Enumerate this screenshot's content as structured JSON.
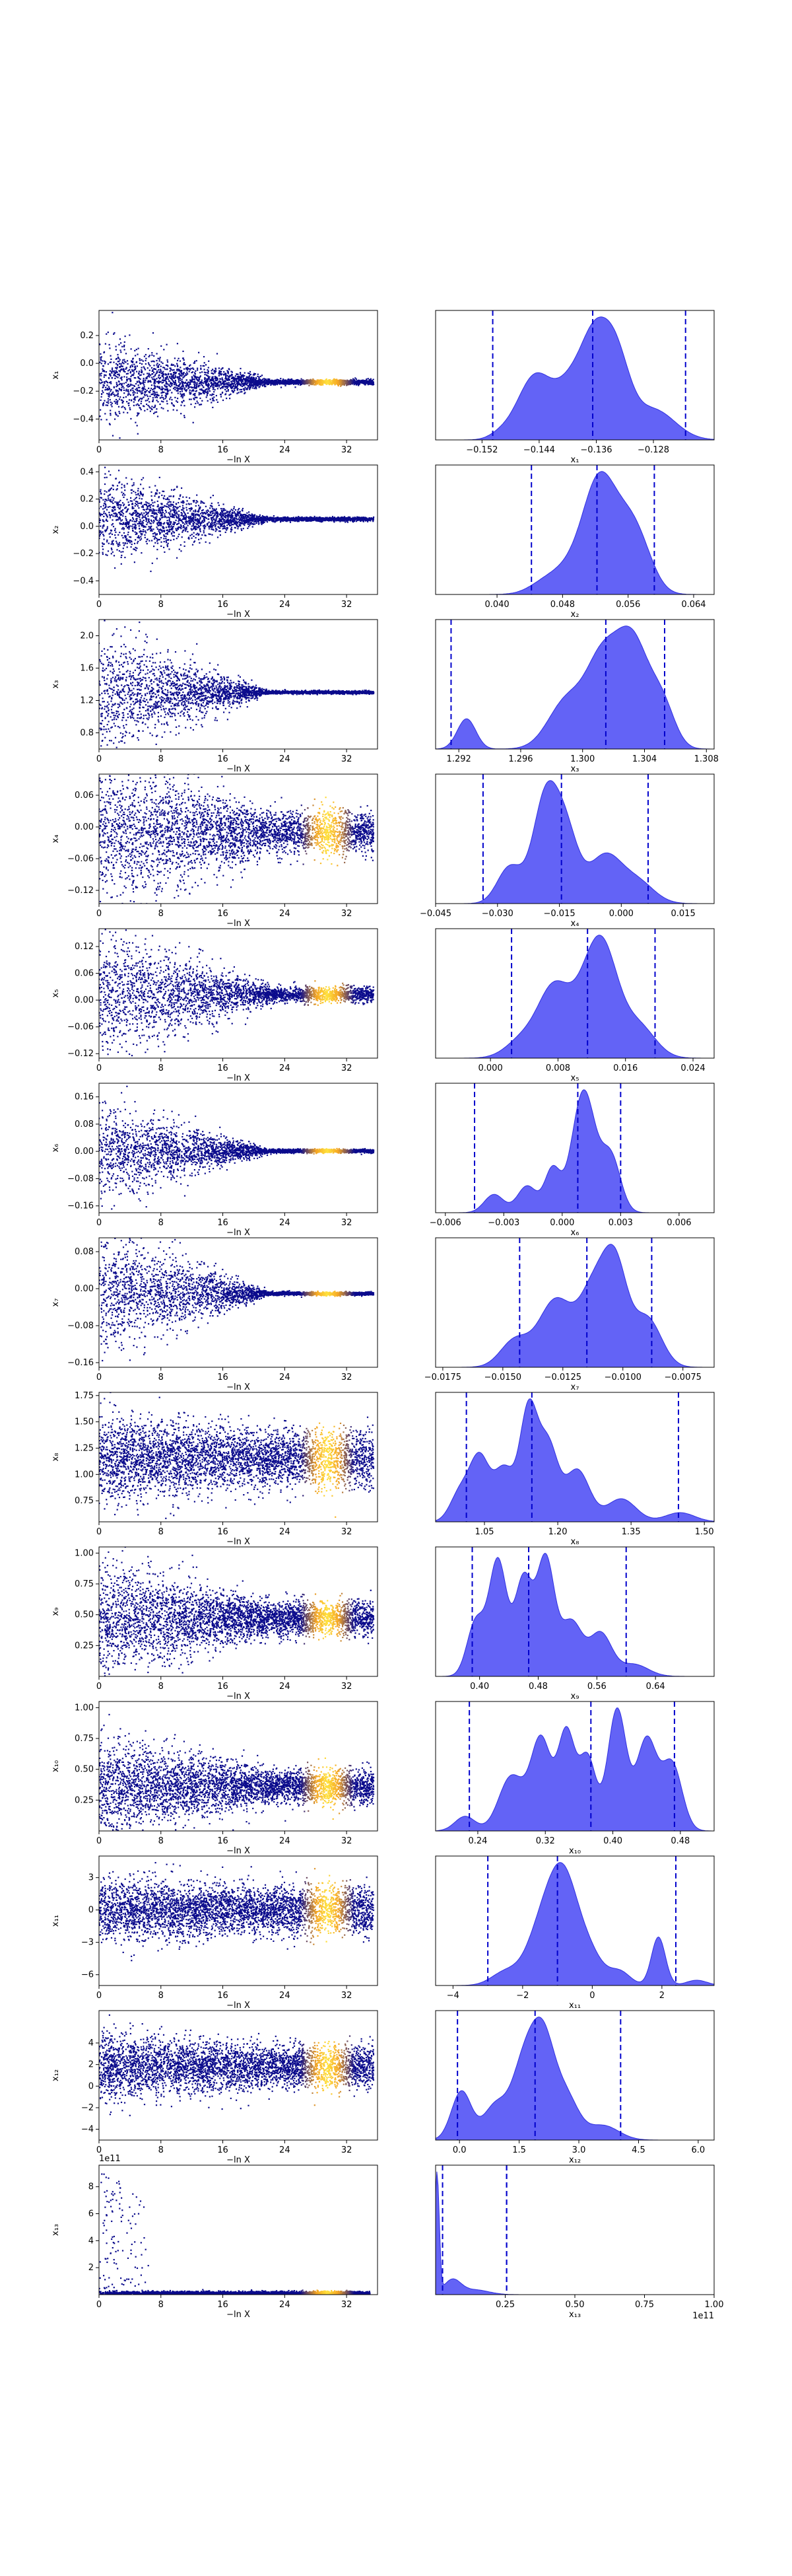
{
  "chart_data": {
    "type": "scatter",
    "x_label": "−ln X",
    "x_ticks": [
      "0",
      "8",
      "16",
      "24",
      "32"
    ],
    "x_range": [
      0,
      36
    ],
    "colors": {
      "scatter_base": "#0b0b8c",
      "scatter_hot": "#f5a623",
      "scatter_hottest": "#ffe23d",
      "kde_fill": "#5b5bf5",
      "kde_edge": "#3030e0",
      "quantile_line": "#0000cc"
    },
    "rows": [
      {
        "param": "x1",
        "label": "x₁",
        "trace": {
          "start_spread": 0.35,
          "end_spread": 0.02,
          "center": -0.135,
          "yticks": [
            "0.2",
            "0.0",
            "−0.2",
            "−0.4"
          ],
          "yvals": [
            0.2,
            0.0,
            -0.2,
            -0.4
          ],
          "ylim": [
            -0.55,
            0.38
          ],
          "hot": true,
          "n": 3000
        },
        "kde": {
          "xticks": [
            "−0.152",
            "−0.144",
            "−0.136",
            "−0.128"
          ],
          "xvals": [
            -0.152,
            -0.144,
            -0.136,
            -0.128
          ],
          "xlim": [
            -0.1585,
            -0.1195
          ],
          "quantiles": [
            -0.1505,
            -0.1365,
            -0.1235
          ],
          "peaks": [
            [
              -0.1495,
              0.05,
              0.0015
            ],
            [
              -0.1445,
              0.75,
              0.0025
            ],
            [
              -0.1395,
              0.55,
              0.002
            ],
            [
              -0.1365,
              0.85,
              0.0018
            ],
            [
              -0.1335,
              1.0,
              0.002
            ],
            [
              -0.128,
              0.35,
              0.003
            ]
          ]
        }
      },
      {
        "param": "x2",
        "label": "x₂",
        "trace": {
          "start_spread": 0.35,
          "end_spread": 0.015,
          "center": 0.052,
          "yticks": [
            "0.4",
            "0.2",
            "0.0",
            "−0.2",
            "−0.4"
          ],
          "yvals": [
            0.4,
            0.2,
            0.0,
            -0.2,
            -0.4
          ],
          "ylim": [
            -0.5,
            0.45
          ],
          "hot": false,
          "n": 3000
        },
        "kde": {
          "xticks": [
            "0.040",
            "0.048",
            "0.056",
            "0.064"
          ],
          "xvals": [
            0.04,
            0.048,
            0.056,
            0.064
          ],
          "xlim": [
            0.0325,
            0.0665
          ],
          "quantiles": [
            0.0442,
            0.0522,
            0.0592
          ],
          "peaks": [
            [
              0.046,
              0.15,
              0.002
            ],
            [
              0.0505,
              0.5,
              0.0025
            ],
            [
              0.0525,
              1.0,
              0.0018
            ],
            [
              0.0555,
              0.7,
              0.002
            ],
            [
              0.0575,
              0.4,
              0.0018
            ]
          ]
        }
      },
      {
        "param": "x3",
        "label": "x₃",
        "trace": {
          "start_spread": 0.8,
          "end_spread": 0.02,
          "center": 1.3,
          "yticks": [
            "2.0",
            "1.6",
            "1.2",
            "0.8"
          ],
          "yvals": [
            2.0,
            1.6,
            1.2,
            0.8
          ],
          "ylim": [
            0.6,
            2.2
          ],
          "hot": false,
          "n": 3000
        },
        "kde": {
          "xticks": [
            "1.292",
            "1.296",
            "1.300",
            "1.304",
            "1.308"
          ],
          "xvals": [
            1.292,
            1.296,
            1.3,
            1.304,
            1.308
          ],
          "xlim": [
            1.2905,
            1.3085
          ],
          "quantiles": [
            1.2915,
            1.3015,
            1.3053
          ],
          "peaks": [
            [
              1.2925,
              0.28,
              0.0006
            ],
            [
              1.299,
              0.45,
              0.0012
            ],
            [
              1.3012,
              0.7,
              0.001
            ],
            [
              1.3032,
              1.0,
              0.0011
            ],
            [
              1.3052,
              0.35,
              0.0008
            ]
          ]
        }
      },
      {
        "param": "x4",
        "label": "x₄",
        "trace": {
          "start_spread": 0.17,
          "end_spread": 0.045,
          "center": -0.01,
          "yticks": [
            "0.06",
            "0.00",
            "−0.06",
            "−0.12"
          ],
          "yvals": [
            0.06,
            0.0,
            -0.06,
            -0.12
          ],
          "ylim": [
            -0.145,
            0.1
          ],
          "hot": true,
          "n": 3500
        },
        "kde": {
          "xticks": [
            "−0.045",
            "−0.030",
            "−0.015",
            "0.000",
            "0.015"
          ],
          "xvals": [
            -0.045,
            -0.03,
            -0.015,
            0.0,
            0.015
          ],
          "xlim": [
            -0.045,
            0.0225
          ],
          "quantiles": [
            -0.0335,
            -0.0145,
            0.0065
          ],
          "peaks": [
            [
              -0.027,
              0.35,
              0.003
            ],
            [
              -0.0185,
              0.95,
              0.003
            ],
            [
              -0.0135,
              0.65,
              0.003
            ],
            [
              -0.004,
              0.45,
              0.004
            ],
            [
              0.004,
              0.2,
              0.004
            ]
          ]
        }
      },
      {
        "param": "x5",
        "label": "x₅",
        "trace": {
          "start_spread": 0.16,
          "end_spread": 0.02,
          "center": 0.012,
          "yticks": [
            "0.12",
            "0.06",
            "0.00",
            "−0.06",
            "−0.12"
          ],
          "yvals": [
            0.12,
            0.06,
            0.0,
            -0.06,
            -0.12
          ],
          "ylim": [
            -0.13,
            0.16
          ],
          "hot": true,
          "n": 3000
        },
        "kde": {
          "xticks": [
            "0.000",
            "0.008",
            "0.016",
            "0.024"
          ],
          "xvals": [
            0.0,
            0.008,
            0.016,
            0.024
          ],
          "xlim": [
            -0.0065,
            0.0265
          ],
          "quantiles": [
            0.0025,
            0.0115,
            0.0195
          ],
          "peaks": [
            [
              0.004,
              0.25,
              0.002
            ],
            [
              0.0075,
              0.8,
              0.0018
            ],
            [
              0.0115,
              0.7,
              0.002
            ],
            [
              0.0135,
              1.0,
              0.0018
            ],
            [
              0.0175,
              0.4,
              0.002
            ]
          ]
        }
      },
      {
        "param": "x6",
        "label": "x₆",
        "trace": {
          "start_spread": 0.16,
          "end_spread": 0.006,
          "center": 0.001,
          "yticks": [
            "0.16",
            "0.08",
            "0.00",
            "−0.08",
            "−0.16"
          ],
          "yvals": [
            0.16,
            0.08,
            0.0,
            -0.08,
            -0.16
          ],
          "ylim": [
            -0.18,
            0.2
          ],
          "hot": true,
          "n": 3000
        },
        "kde": {
          "xticks": [
            "−0.006",
            "−0.003",
            "0.000",
            "0.003",
            "0.006"
          ],
          "xvals": [
            -0.006,
            -0.003,
            0.0,
            0.003,
            0.006
          ],
          "xlim": [
            -0.0065,
            0.0078
          ],
          "quantiles": [
            -0.0045,
            0.0008,
            0.003
          ],
          "peaks": [
            [
              -0.0035,
              0.15,
              0.0005
            ],
            [
              -0.0018,
              0.22,
              0.0005
            ],
            [
              -0.0005,
              0.35,
              0.0004
            ],
            [
              0.0011,
              1.0,
              0.0006
            ],
            [
              0.0025,
              0.45,
              0.0005
            ]
          ]
        }
      },
      {
        "param": "x7",
        "label": "x₇",
        "trace": {
          "start_spread": 0.15,
          "end_spread": 0.004,
          "center": -0.011,
          "yticks": [
            "0.08",
            "0.00",
            "−0.08",
            "−0.16"
          ],
          "yvals": [
            0.08,
            0.0,
            -0.08,
            -0.16
          ],
          "ylim": [
            -0.17,
            0.11
          ],
          "hot": true,
          "n": 3000
        },
        "kde": {
          "xticks": [
            "−0.0175",
            "−0.0150",
            "−0.0125",
            "−0.0100",
            "−0.0075"
          ],
          "xvals": [
            -0.0175,
            -0.015,
            -0.0125,
            -0.01,
            -0.0075
          ],
          "xlim": [
            -0.0178,
            -0.0062
          ],
          "quantiles": [
            -0.0143,
            -0.0115,
            -0.0088
          ],
          "peaks": [
            [
              -0.0145,
              0.3,
              0.0006
            ],
            [
              -0.0128,
              0.75,
              0.0007
            ],
            [
              -0.0112,
              0.85,
              0.0006
            ],
            [
              -0.0103,
              1.0,
              0.0005
            ],
            [
              -0.009,
              0.55,
              0.0006
            ]
          ]
        }
      },
      {
        "param": "x8",
        "label": "x₈",
        "trace": {
          "start_spread": 0.45,
          "end_spread": 0.3,
          "center": 1.15,
          "yticks": [
            "1.75",
            "1.50",
            "1.25",
            "1.00",
            "0.75"
          ],
          "yvals": [
            1.75,
            1.5,
            1.25,
            1.0,
            0.75
          ],
          "ylim": [
            0.55,
            1.78
          ],
          "hot": true,
          "n": 4000
        },
        "kde": {
          "xticks": [
            "1.05",
            "1.20",
            "1.35",
            "1.50"
          ],
          "xvals": [
            1.05,
            1.2,
            1.35,
            1.5
          ],
          "xlim": [
            0.95,
            1.52
          ],
          "quantiles": [
            1.013,
            1.147,
            1.447
          ],
          "peaks": [
            [
              1.0,
              0.25,
              0.02
            ],
            [
              1.04,
              0.55,
              0.02
            ],
            [
              1.09,
              0.45,
              0.02
            ],
            [
              1.14,
              0.95,
              0.018
            ],
            [
              1.18,
              0.65,
              0.02
            ],
            [
              1.24,
              0.45,
              0.025
            ],
            [
              1.33,
              0.2,
              0.03
            ],
            [
              1.45,
              0.08,
              0.03
            ]
          ]
        }
      },
      {
        "param": "x9",
        "label": "x₉",
        "trace": {
          "start_spread": 0.5,
          "end_spread": 0.15,
          "center": 0.47,
          "yticks": [
            "1.00",
            "0.75",
            "0.50",
            "0.25"
          ],
          "yvals": [
            1.0,
            0.75,
            0.5,
            0.25
          ],
          "ylim": [
            0.0,
            1.05
          ],
          "hot": true,
          "n": 4000
        },
        "kde": {
          "xticks": [
            "0.40",
            "0.48",
            "0.56",
            "0.64"
          ],
          "xvals": [
            0.4,
            0.48,
            0.56,
            0.64
          ],
          "xlim": [
            0.34,
            0.72
          ],
          "quantiles": [
            0.39,
            0.467,
            0.6
          ],
          "peaks": [
            [
              0.395,
              0.45,
              0.012
            ],
            [
              0.425,
              0.95,
              0.012
            ],
            [
              0.46,
              0.8,
              0.012
            ],
            [
              0.49,
              0.95,
              0.012
            ],
            [
              0.525,
              0.45,
              0.015
            ],
            [
              0.565,
              0.35,
              0.015
            ],
            [
              0.61,
              0.1,
              0.02
            ]
          ]
        }
      },
      {
        "param": "x10",
        "label": "x₁₀",
        "trace": {
          "start_spread": 0.45,
          "end_spread": 0.15,
          "center": 0.36,
          "yticks": [
            "1.00",
            "0.75",
            "0.50",
            "0.25"
          ],
          "yvals": [
            1.0,
            0.75,
            0.5,
            0.25
          ],
          "ylim": [
            0.0,
            1.05
          ],
          "hot": true,
          "n": 4000
        },
        "kde": {
          "xticks": [
            "0.24",
            "0.32",
            "0.40",
            "0.48"
          ],
          "xvals": [
            0.24,
            0.32,
            0.4,
            0.48
          ],
          "xlim": [
            0.19,
            0.52
          ],
          "quantiles": [
            0.23,
            0.374,
            0.473
          ],
          "peaks": [
            [
              0.225,
              0.12,
              0.012
            ],
            [
              0.28,
              0.45,
              0.015
            ],
            [
              0.315,
              0.75,
              0.012
            ],
            [
              0.345,
              0.8,
              0.01
            ],
            [
              0.37,
              0.6,
              0.01
            ],
            [
              0.405,
              1.0,
              0.011
            ],
            [
              0.44,
              0.75,
              0.012
            ],
            [
              0.47,
              0.55,
              0.012
            ]
          ]
        }
      },
      {
        "param": "x11",
        "label": "x₁₁",
        "trace": {
          "start_spread": 3.2,
          "end_spread": 2.5,
          "center": 0.0,
          "yticks": [
            "3",
            "0",
            "−3",
            "−6"
          ],
          "yvals": [
            3,
            0,
            -3,
            -6
          ],
          "ylim": [
            -7.0,
            5.0
          ],
          "hot": true,
          "n": 4000
        },
        "kde": {
          "xticks": [
            "−4",
            "−2",
            "0",
            "2"
          ],
          "xvals": [
            -4,
            -2,
            0,
            2
          ],
          "xlim": [
            -4.5,
            3.5
          ],
          "quantiles": [
            -3.0,
            -1.0,
            2.4
          ],
          "peaks": [
            [
              -2.5,
              0.15,
              0.4
            ],
            [
              -1.4,
              0.7,
              0.45
            ],
            [
              -0.8,
              1.0,
              0.4
            ],
            [
              -0.1,
              0.35,
              0.4
            ],
            [
              0.8,
              0.15,
              0.3
            ],
            [
              1.9,
              0.55,
              0.2
            ],
            [
              3.0,
              0.06,
              0.3
            ]
          ]
        }
      },
      {
        "param": "x12",
        "label": "x₁₂",
        "trace": {
          "start_spread": 3.5,
          "end_spread": 2.2,
          "center": 1.8,
          "yticks": [
            "4",
            "2",
            "0",
            "−2",
            "−4"
          ],
          "yvals": [
            4,
            2,
            0,
            -2,
            -4
          ],
          "ylim": [
            -5.0,
            7.0
          ],
          "hot": true,
          "n": 4000
        },
        "kde": {
          "xticks": [
            "0.0",
            "1.5",
            "3.0",
            "4.5",
            "6.0"
          ],
          "xvals": [
            0,
            1.5,
            3.0,
            4.5,
            6.0
          ],
          "xlim": [
            -0.6,
            6.4
          ],
          "quantiles": [
            -0.05,
            1.9,
            4.05
          ],
          "peaks": [
            [
              0.05,
              0.5,
              0.25
            ],
            [
              0.9,
              0.35,
              0.3
            ],
            [
              1.6,
              0.7,
              0.3
            ],
            [
              2.1,
              1.0,
              0.3
            ],
            [
              2.7,
              0.4,
              0.3
            ],
            [
              3.6,
              0.15,
              0.4
            ]
          ]
        }
      },
      {
        "param": "x13",
        "label": "x₁₃",
        "trace": {
          "start_spread": 9.5,
          "end_spread": 0.15,
          "center": 0.2,
          "yticks": [
            "8",
            "6",
            "4",
            "2"
          ],
          "yvals": [
            8,
            6,
            4,
            2
          ],
          "ylim": [
            0,
            9.6
          ],
          "hot": true,
          "n": 3000,
          "offset": "1e11"
        },
        "kde": {
          "xticks": [
            "0.25",
            "0.50",
            "0.75",
            "1.00"
          ],
          "xvals": [
            0.25,
            0.5,
            0.75,
            1.0
          ],
          "xlim": [
            0.0,
            1.0
          ],
          "quantiles": [
            0.025,
            0.255,
            0.255
          ],
          "offset": "1e11",
          "peaks": [
            [
              0.005,
              1.0,
              0.008
            ],
            [
              0.06,
              0.12,
              0.03
            ],
            [
              0.14,
              0.04,
              0.05
            ]
          ]
        }
      }
    ]
  }
}
